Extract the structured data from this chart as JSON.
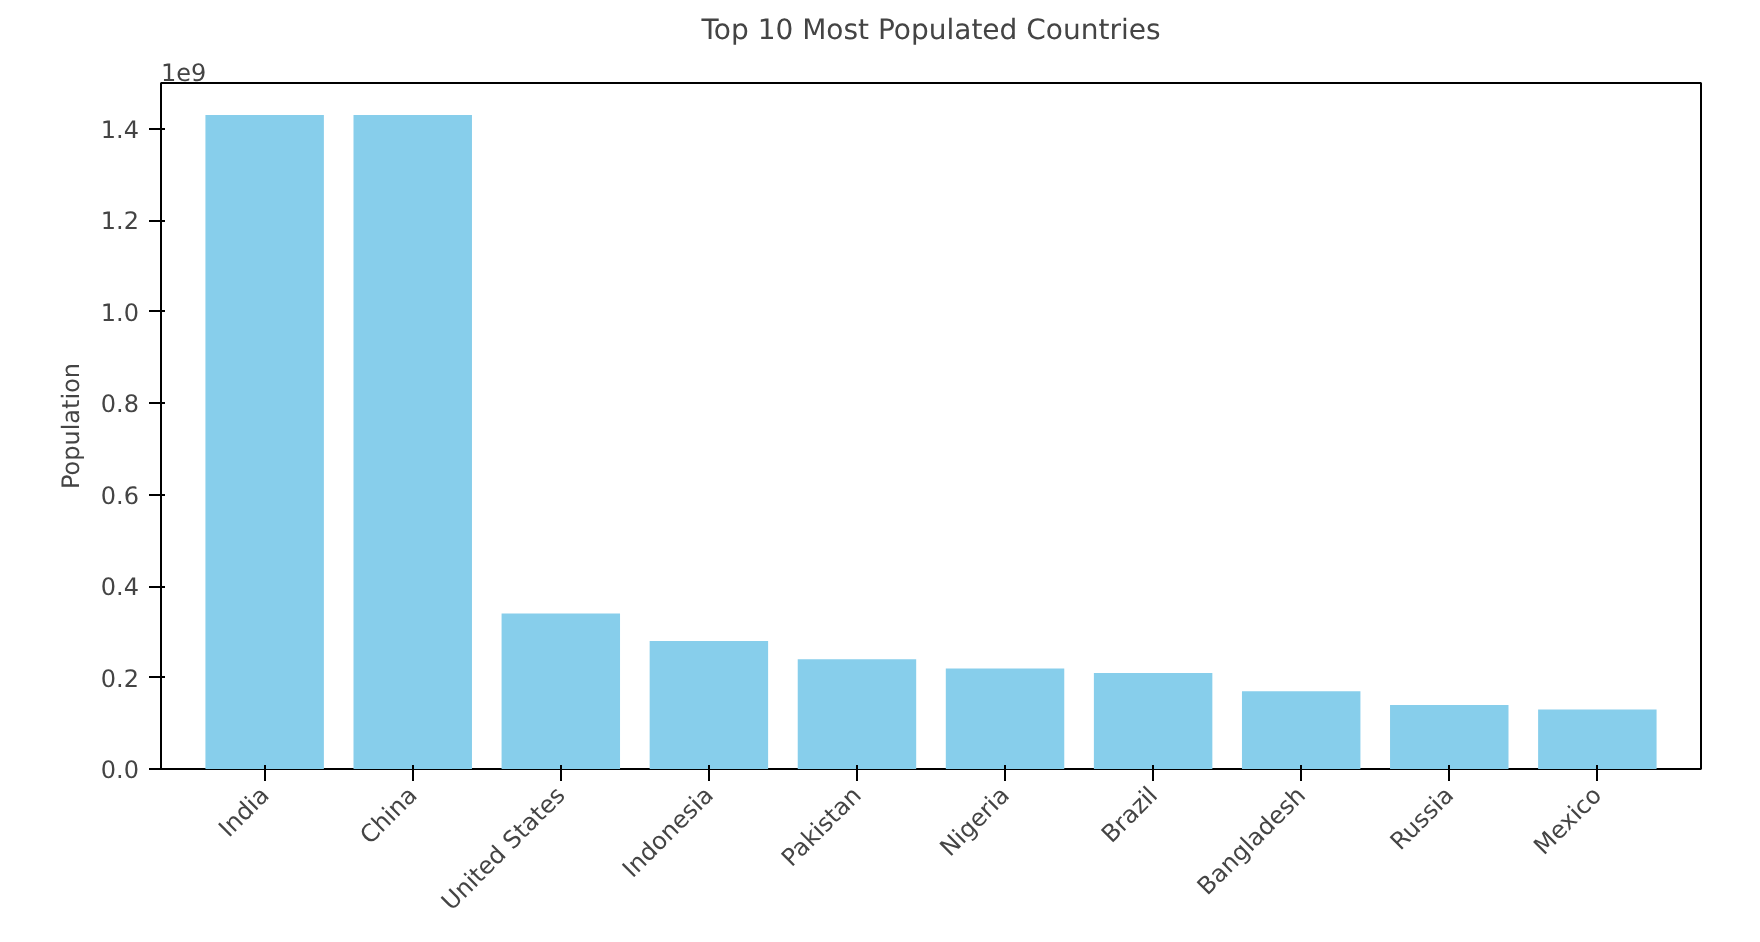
{
  "chart_data": {
    "type": "bar",
    "title": "Top 10 Most Populated Countries",
    "ylabel": "Population",
    "annotations": [
      "1e9"
    ],
    "categories": [
      "India",
      "China",
      "United States",
      "Indonesia",
      "Pakistan",
      "Nigeria",
      "Brazil",
      "Bangladesh",
      "Russia",
      "Mexico"
    ],
    "values": [
      1.43,
      1.43,
      0.34,
      0.28,
      0.24,
      0.22,
      0.21,
      0.17,
      0.14,
      0.13
    ],
    "color": "#87ceeb",
    "ylim": [
      0,
      1.5
    ],
    "yticks": [
      {
        "value": 0,
        "label": "0.0"
      },
      0.2,
      0.4,
      0.6,
      0.8,
      {
        "value": 1,
        "label": "1.0"
      },
      1.2,
      1.4
    ],
    "grid": false
  }
}
